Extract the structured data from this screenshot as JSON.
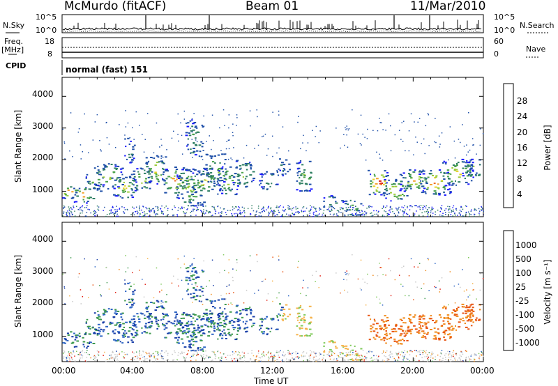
{
  "header": {
    "station": "McMurdo (fitACF)",
    "beam": "Beam 01",
    "date": "11/Mar/2010"
  },
  "summary_panel": {
    "left_labels": {
      "nsky": "N.Sky",
      "freq": "Freq.",
      "freq_unit": "[MHz]",
      "cpid": "CPID"
    },
    "right_labels": {
      "nsearch": "N.Search",
      "nave": "Nave"
    },
    "noise_ticks": [
      "10^5",
      "10^0"
    ],
    "freq_ticks": [
      "18",
      "8"
    ],
    "nave_ticks": [
      "60",
      "0"
    ],
    "cpid_text": "normal (fast) 151"
  },
  "colors": {
    "power": [
      "#1a1aff",
      "#1e4fa8",
      "#2f7f63",
      "#4aa24a",
      "#9ccc3c",
      "#e7d22a",
      "#f2a12a",
      "#ee6a1c",
      "#e21e12"
    ],
    "velocity": [
      "#1a3fa8",
      "#2b64c4",
      "#3e9a4e",
      "#7fc95a",
      "#c8c8c8",
      "#c8c8c8",
      "#f6b24a",
      "#f08a1c",
      "#e85514",
      "#e11c10"
    ]
  },
  "chart_data": [
    {
      "type": "heatmap",
      "name": "Power",
      "xlabel": "",
      "ylabel": "Slant Range [km]",
      "xlim": [
        0,
        24
      ],
      "ylim": [
        200,
        4600
      ],
      "yticks": [
        "1000",
        "2000",
        "3000",
        "4000"
      ],
      "colorbar": {
        "label": "Power [dB]",
        "ticks": [
          "4",
          "8",
          "12",
          "16",
          "20",
          "24",
          "28"
        ],
        "range": [
          0,
          30
        ]
      }
    },
    {
      "type": "heatmap",
      "name": "Velocity",
      "xlabel": "Time UT",
      "ylabel": "Slant Range [km]",
      "xlim": [
        0,
        24
      ],
      "ylim": [
        200,
        4600
      ],
      "xticks": [
        "00:00",
        "04:00",
        "08:00",
        "12:00",
        "16:00",
        "20:00",
        "00:00"
      ],
      "yticks": [
        "1000",
        "2000",
        "3000",
        "4000"
      ],
      "colorbar": {
        "label": "Velocity [m s⁻¹]",
        "ticks": [
          "1000",
          "500",
          "100",
          "25",
          "-25",
          "-100",
          "-500",
          "-1000"
        ]
      }
    }
  ]
}
